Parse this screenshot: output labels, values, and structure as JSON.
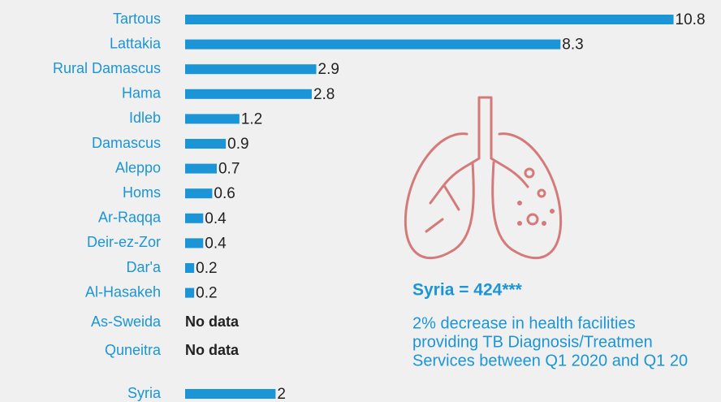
{
  "chart_data": {
    "type": "bar",
    "orientation": "horizontal",
    "categories": [
      "Tartous",
      "Lattakia",
      "Rural Damascus",
      "Hama",
      "Idleb",
      "Damascus",
      "Aleppo",
      "Homs",
      "Ar-Raqqa",
      "Deir-ez-Zor",
      "Dar'a",
      "Al-Hasakeh",
      "As-Sweida",
      "Quneitra",
      "Syria"
    ],
    "values": [
      10.8,
      8.3,
      2.9,
      2.8,
      1.2,
      0.9,
      0.7,
      0.6,
      0.4,
      0.4,
      0.2,
      0.2,
      null,
      null,
      2
    ],
    "value_labels": [
      null,
      null,
      null,
      null,
      null,
      null,
      null,
      null,
      null,
      null,
      null,
      null,
      "No data",
      "No data",
      null
    ],
    "color": "#1b95d6",
    "annotation_title": "Syria = 424***",
    "annotation_lines": [
      "2% decrease in health facilities",
      "providing TB Diagnosis/Treatmen",
      "Services between Q1 2020 and Q1 20"
    ]
  }
}
